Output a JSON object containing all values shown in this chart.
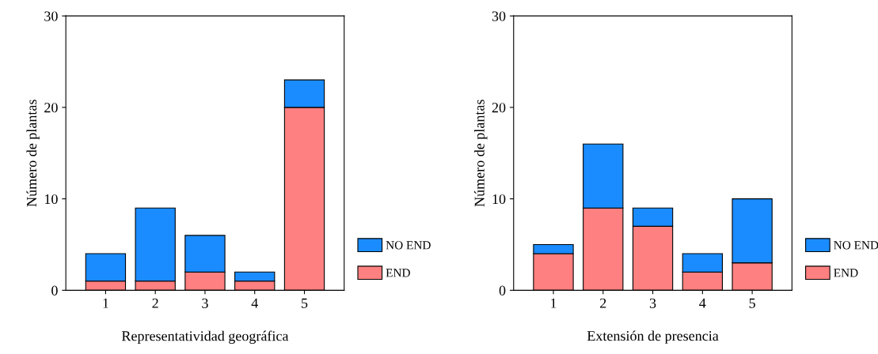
{
  "chart_data": [
    {
      "type": "bar",
      "stacked": true,
      "xlabel": "Representatividad geográfica",
      "ylabel": "Número de plantas",
      "categories": [
        "1",
        "2",
        "3",
        "4",
        "5"
      ],
      "ylim": [
        0,
        30
      ],
      "yticks": [
        0,
        10,
        20,
        30
      ],
      "legend": "bottom right",
      "grid": false,
      "series": [
        {
          "name": "END",
          "color": "#ff8080",
          "values": [
            1,
            1,
            2,
            1,
            20
          ]
        },
        {
          "name": "NO END",
          "color": "#1a8cff",
          "values": [
            3,
            8,
            4,
            1,
            3
          ]
        }
      ]
    },
    {
      "type": "bar",
      "stacked": true,
      "xlabel": "Extensión de presencia",
      "ylabel": "Número de plantas",
      "categories": [
        "1",
        "2",
        "3",
        "4",
        "5"
      ],
      "ylim": [
        0,
        30
      ],
      "yticks": [
        0,
        10,
        20,
        30
      ],
      "legend": "bottom right",
      "grid": false,
      "series": [
        {
          "name": "END",
          "color": "#ff8080",
          "values": [
            4,
            9,
            7,
            2,
            3
          ]
        },
        {
          "name": "NO END",
          "color": "#1a8cff",
          "values": [
            1,
            7,
            2,
            2,
            7
          ]
        }
      ]
    }
  ]
}
